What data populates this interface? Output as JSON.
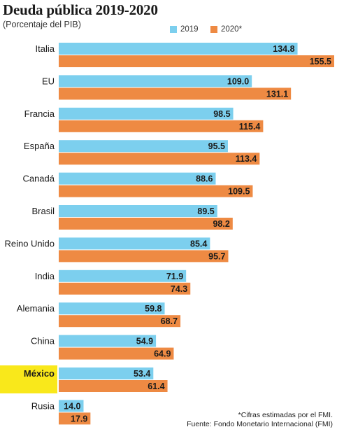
{
  "title": "Deuda pública 2019-2020",
  "subtitle": "(Porcentaje del PIB)",
  "colors": {
    "s2019": "#7ccfee",
    "s2020": "#ee8a43",
    "highlight": "#f9e81b"
  },
  "legend": {
    "s2019": "2019",
    "s2020": "2020*"
  },
  "chart_data": {
    "type": "bar",
    "orientation": "horizontal",
    "categories": [
      "Italia",
      "EU",
      "Francia",
      "España",
      "Canadá",
      "Brasil",
      "Reino Unido",
      "India",
      "Alemania",
      "China",
      "México",
      "Rusia"
    ],
    "series": [
      {
        "name": "2019",
        "values": [
          134.8,
          109.0,
          98.5,
          95.5,
          88.6,
          89.5,
          85.4,
          71.9,
          59.8,
          54.9,
          53.4,
          14.0
        ]
      },
      {
        "name": "2020*",
        "values": [
          155.5,
          131.1,
          115.4,
          113.4,
          109.5,
          98.2,
          95.7,
          74.3,
          68.7,
          64.9,
          61.4,
          17.9
        ]
      }
    ],
    "value_labels": [
      [
        "134.8",
        "109.0",
        "98.5",
        "95.5",
        "88.6",
        "89.5",
        "85.4",
        "71.9",
        "59.8",
        "54.9",
        "53.4",
        "14.0"
      ],
      [
        "155.5",
        "131.1",
        "115.4",
        "113.4",
        "109.5",
        "98.2",
        "95.7",
        "74.3",
        "68.7",
        "64.9",
        "61.4",
        "17.9"
      ]
    ],
    "highlighted_category": "México",
    "legend_position": "top",
    "grid": false,
    "xlim": [
      0,
      155.5
    ]
  },
  "notes": {
    "estimate": "*Cifras estimadas por el FMI.",
    "source": "Fuente: Fondo Monetario Internacional (FMI)"
  }
}
